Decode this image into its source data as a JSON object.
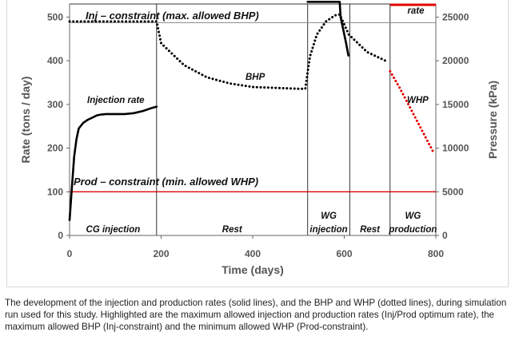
{
  "chart_data": {
    "type": "line",
    "title": "",
    "xlabel": "Time (days)",
    "ylabel": "Rate (tons / day)",
    "y2label": "Pressure (kPa)",
    "xlim": [
      0,
      800
    ],
    "ylim": [
      0,
      530
    ],
    "y2lim": [
      0,
      26500
    ],
    "xticks": [
      0,
      200,
      400,
      600,
      800
    ],
    "yticks": [
      0,
      100,
      200,
      300,
      400,
      500
    ],
    "y2ticks": [
      0,
      5000,
      10000,
      15000,
      20000,
      25000
    ],
    "grid": false,
    "series": [
      {
        "name": "Injection rate",
        "style": "solid",
        "axis": "left",
        "color": "#000000",
        "points": [
          [
            0,
            35
          ],
          [
            5,
            110
          ],
          [
            10,
            180
          ],
          [
            15,
            220
          ],
          [
            20,
            245
          ],
          [
            30,
            258
          ],
          [
            40,
            265
          ],
          [
            50,
            270
          ],
          [
            60,
            275
          ],
          [
            70,
            277
          ],
          [
            80,
            278
          ],
          [
            100,
            278
          ],
          [
            120,
            278
          ],
          [
            140,
            280
          ],
          [
            160,
            285
          ],
          [
            180,
            292
          ],
          [
            190,
            295
          ]
        ]
      },
      {
        "name": "BHP",
        "style": "dotted",
        "axis": "right",
        "color": "#000000",
        "points": [
          [
            0,
            24500
          ],
          [
            190,
            24500
          ],
          [
            200,
            22000
          ],
          [
            250,
            19500
          ],
          [
            300,
            18100
          ],
          [
            350,
            17400
          ],
          [
            400,
            17000
          ],
          [
            450,
            16900
          ],
          [
            500,
            16800
          ],
          [
            515,
            16800
          ],
          [
            518,
            18000
          ],
          [
            525,
            20500
          ],
          [
            540,
            23000
          ],
          [
            560,
            24500
          ],
          [
            580,
            25200
          ],
          [
            590,
            25300
          ],
          [
            610,
            23000
          ],
          [
            650,
            21000
          ],
          [
            690,
            20000
          ]
        ]
      },
      {
        "name": "Production rate",
        "style": "solid",
        "axis": "left",
        "color": "#000000",
        "points": [
          [
            520,
            535
          ],
          [
            550,
            535
          ],
          [
            580,
            535
          ],
          [
            590,
            535
          ],
          [
            592,
            500
          ],
          [
            598,
            470
          ],
          [
            604,
            440
          ],
          [
            609,
            412
          ]
        ]
      },
      {
        "name": "WHP",
        "style": "dotted",
        "axis": "right",
        "color": "#e00000",
        "points": [
          [
            700,
            18800
          ],
          [
            720,
            17000
          ],
          [
            740,
            15000
          ],
          [
            760,
            13000
          ],
          [
            780,
            11000
          ],
          [
            795,
            9500
          ]
        ]
      }
    ],
    "constraints": [
      {
        "label": "Inj – constraint (max. allowed BHP)",
        "axis": "right",
        "value": 24500,
        "style": "dotted"
      },
      {
        "label": "Prod – constraint (min. allowed WHP)",
        "axis": "right",
        "value": 5000,
        "color": "#e00000"
      },
      {
        "label": "",
        "axis": "left",
        "value": 530
      }
    ],
    "phase_boundaries": [
      190,
      520,
      612,
      700
    ],
    "phases": [
      "CG injection",
      "Rest",
      "WG injection",
      "Rest",
      "WG production"
    ],
    "annotations": {
      "injection_rate": "Injection rate",
      "bhp": "BHP",
      "whp": "WHP",
      "production_rate_top": "rate"
    },
    "colors": {
      "axis_text": "#555555",
      "constraint_red": "#e00000",
      "line": "#000000"
    }
  },
  "caption": "The development of the injection and production rates (solid lines), and the BHP and WHP (dotted lines), during simulation run used for this study. Highlighted are the maximum allowed injection and production rates (Inj/Prod optimum rate), the maximum allowed BHP (Inj-constraint) and the minimum allowed WHP (Prod-constraint)."
}
